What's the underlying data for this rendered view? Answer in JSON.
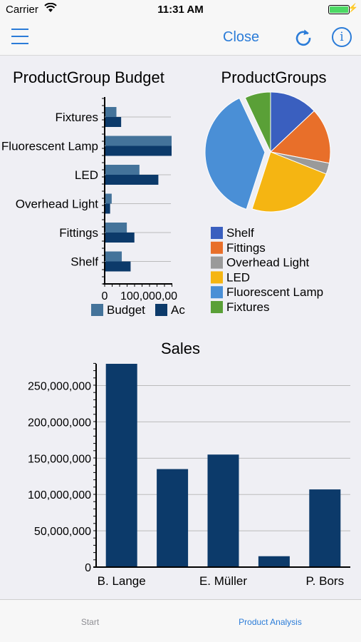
{
  "status": {
    "carrier": "Carrier",
    "time": "11:31 AM"
  },
  "nav": {
    "close_label": "Close"
  },
  "colors": {
    "accent": "#2b7cd8",
    "budget": "#44739a",
    "actual": "#0c3a6a",
    "sales_bar": "#0c3a6a"
  },
  "tabs": {
    "start": "Start",
    "analysis": "Product Analysis"
  },
  "chart_data": [
    {
      "type": "bar",
      "orientation": "horizontal",
      "title": "ProductGroup Budget",
      "categories": [
        "Fixtures",
        "Fluorescent Lamp",
        "LED",
        "Overhead Light",
        "Fittings",
        "Shelf"
      ],
      "series": [
        {
          "name": "Budget",
          "values": [
            35000,
            210000,
            108000,
            20000,
            68000,
            52000
          ]
        },
        {
          "name": "Ac",
          "values": [
            50000,
            210000,
            168000,
            15000,
            92000,
            80000
          ]
        }
      ],
      "xlim": [
        0,
        210000
      ],
      "xticks": [
        "0",
        "100,000,00"
      ],
      "legend": "bottom"
    },
    {
      "type": "pie",
      "title": "ProductGroups",
      "slices": [
        {
          "label": "Shelf",
          "value": 13,
          "color": "#3a5fbf"
        },
        {
          "label": "Fittings",
          "value": 15,
          "color": "#e86f2a"
        },
        {
          "label": "Overhead Light",
          "value": 3,
          "color": "#9a9a9a"
        },
        {
          "label": "LED",
          "value": 24,
          "color": "#f5b512"
        },
        {
          "label": "Fluorescent Lamp",
          "value": 38,
          "color": "#4a8fd6"
        },
        {
          "label": "Fixtures",
          "value": 7,
          "color": "#5aa037"
        }
      ],
      "legend": "bottom"
    },
    {
      "type": "bar",
      "title": "Sales",
      "categories": [
        "B. Lange",
        "",
        "E. Müller",
        "",
        "P. Bors"
      ],
      "values": [
        280000000,
        135000000,
        155000000,
        15000000,
        107000000
      ],
      "ylim": [
        0,
        280000000
      ],
      "yticks": [
        "0",
        "50,000,000",
        "100,000,000",
        "150,000,000",
        "200,000,000",
        "250,000,000"
      ],
      "grid": true
    }
  ]
}
